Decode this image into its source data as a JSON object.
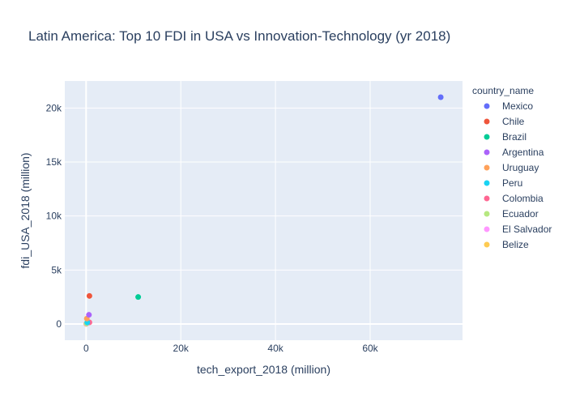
{
  "chart_data": {
    "type": "scatter",
    "title": "Latin America: Top 10 FDI in USA vs Innovation-Technology (yr 2018)",
    "xlabel": "tech_export_2018 (million)",
    "ylabel": "fdi_USA_2018 (million)",
    "xlim": [
      -4500,
      79500
    ],
    "ylim": [
      -1500,
      22500
    ],
    "x_ticks": [
      {
        "value": 0,
        "label": "0"
      },
      {
        "value": 20000,
        "label": "20k"
      },
      {
        "value": 40000,
        "label": "40k"
      },
      {
        "value": 60000,
        "label": "60k"
      }
    ],
    "y_ticks": [
      {
        "value": 0,
        "label": "0"
      },
      {
        "value": 5000,
        "label": "5k"
      },
      {
        "value": 10000,
        "label": "10k"
      },
      {
        "value": 15000,
        "label": "15k"
      },
      {
        "value": 20000,
        "label": "20k"
      }
    ],
    "grid": true,
    "legend_title": "country_name",
    "legend_position": "right",
    "series": [
      {
        "name": "Mexico",
        "color": "#636efa",
        "x": 74900,
        "y": 21000
      },
      {
        "name": "Chile",
        "color": "#ef553b",
        "x": 700,
        "y": 2600
      },
      {
        "name": "Brazil",
        "color": "#00cc96",
        "x": 11000,
        "y": 2500
      },
      {
        "name": "Argentina",
        "color": "#ab63fa",
        "x": 600,
        "y": 850
      },
      {
        "name": "Uruguay",
        "color": "#ffa15a",
        "x": 150,
        "y": 500
      },
      {
        "name": "Peru",
        "color": "#19d3f3",
        "x": 250,
        "y": 150
      },
      {
        "name": "Colombia",
        "color": "#ff6692",
        "x": 700,
        "y": 150
      },
      {
        "name": "Ecuador",
        "color": "#b6e880",
        "x": 100,
        "y": 50
      },
      {
        "name": "El Salvador",
        "color": "#ff97ff",
        "x": 50,
        "y": 30
      },
      {
        "name": "Belize",
        "color": "#fecb52",
        "x": 10,
        "y": 10
      }
    ]
  }
}
